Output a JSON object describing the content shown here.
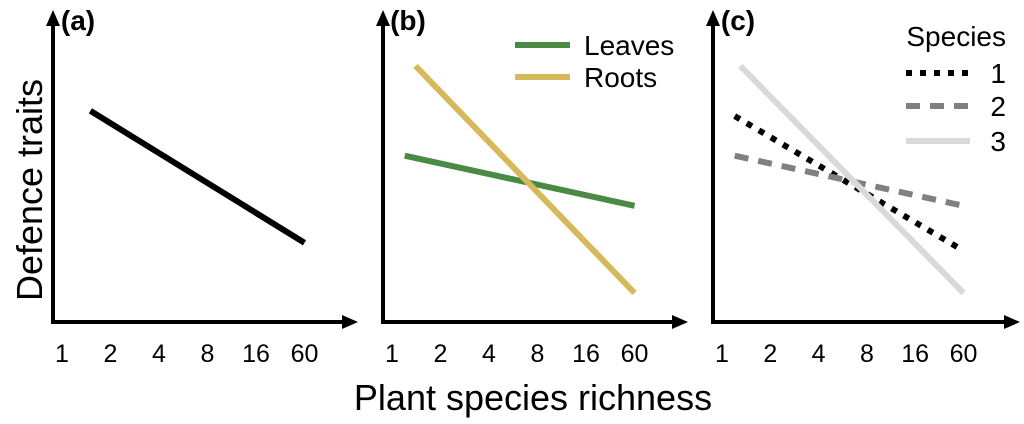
{
  "figure": {
    "xlabel": "Plant species richness",
    "ylabel": "Defence traits"
  },
  "chart_data": [
    {
      "type": "line",
      "panel_label": "(a)",
      "x_scale": "log2",
      "x_ticks": [
        1,
        2,
        4,
        8,
        16,
        60
      ],
      "x_tick_labels": [
        "1",
        "2",
        "4",
        "8",
        "16",
        "60"
      ],
      "xlabel": "Plant species richness",
      "ylabel": "Defence traits",
      "ylim": [
        0,
        10
      ],
      "legend": null,
      "series": [
        {
          "color": "#000000",
          "dash": "solid",
          "x": [
            1.5,
            60
          ],
          "y": [
            8.0,
            3.0
          ]
        }
      ]
    },
    {
      "type": "line",
      "panel_label": "(b)",
      "x_scale": "log2",
      "x_ticks": [
        1,
        2,
        4,
        8,
        16,
        60
      ],
      "x_tick_labels": [
        "1",
        "2",
        "4",
        "8",
        "16",
        "60"
      ],
      "xlabel": "Plant species richness",
      "ylabel": "",
      "ylim": [
        0,
        10
      ],
      "legend": "top-right",
      "series": [
        {
          "name": "Leaves",
          "color": "#4a8a45",
          "dash": "solid",
          "x": [
            1.2,
            60
          ],
          "y": [
            6.3,
            4.4
          ]
        },
        {
          "name": "Roots",
          "color": "#d7b85b",
          "dash": "solid",
          "x": [
            1.4,
            60
          ],
          "y": [
            9.7,
            1.1
          ]
        }
      ]
    },
    {
      "type": "line",
      "panel_label": "(c)",
      "x_scale": "log2",
      "x_ticks": [
        1,
        2,
        4,
        8,
        16,
        60
      ],
      "x_tick_labels": [
        "1",
        "2",
        "4",
        "8",
        "16",
        "60"
      ],
      "xlabel": "Plant species richness",
      "ylabel": "",
      "ylim": [
        0,
        10
      ],
      "legend": "top-right",
      "legend_title": "Species",
      "series": [
        {
          "name": "1",
          "color": "#000000",
          "dash": "dotted",
          "x": [
            1.2,
            60
          ],
          "y": [
            7.8,
            2.7
          ]
        },
        {
          "name": "2",
          "color": "#808080",
          "dash": "dashed",
          "x": [
            1.2,
            60
          ],
          "y": [
            6.3,
            4.4
          ]
        },
        {
          "name": "3",
          "color": "#d9d9d9",
          "dash": "solid",
          "x": [
            1.3,
            60
          ],
          "y": [
            9.7,
            1.1
          ]
        }
      ]
    }
  ]
}
